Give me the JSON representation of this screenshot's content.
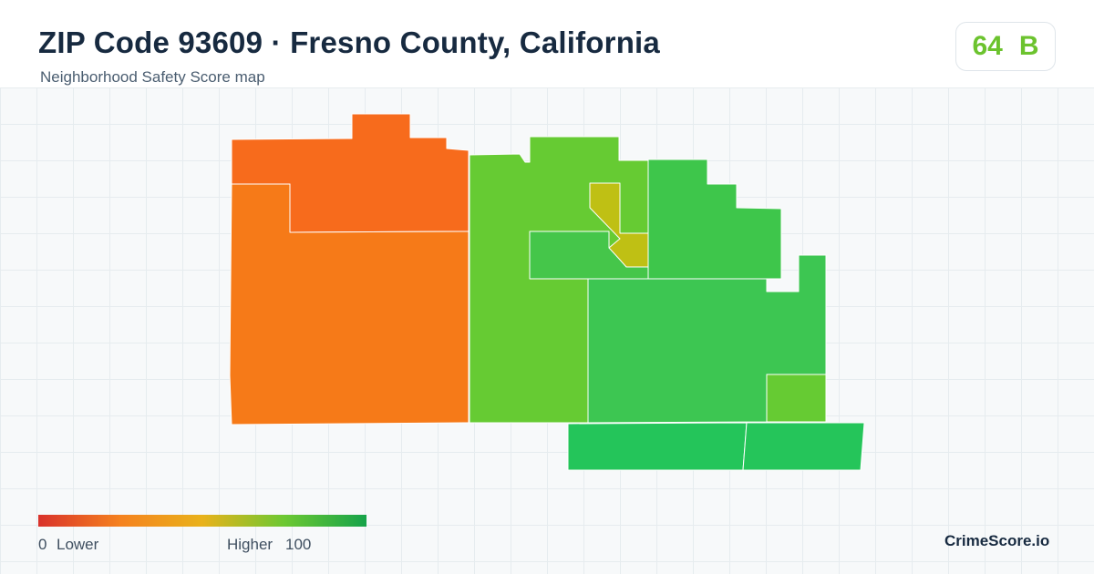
{
  "header": {
    "title": "ZIP Code 93609 · Fresno County, California",
    "subtitle": "Neighborhood Safety Score map"
  },
  "score": {
    "value": "64",
    "grade": "B",
    "color": "#6cc32e"
  },
  "legend": {
    "min_label": "0",
    "low_label": "Lower",
    "high_label": "Higher",
    "max_label": "100",
    "colors": [
      "#d9322b",
      "#f5821f",
      "#e9b21b",
      "#6cc832",
      "#16a34a"
    ]
  },
  "brand": "CrimeScore.io",
  "map": {
    "region_colors": {
      "north_west": "#f76b1c",
      "south_west": "#f67a18",
      "central": "#66cb33",
      "center_small": "#bfc014",
      "center_east_strip": "#45c64a",
      "north_east": "#3ec64b",
      "east": "#3dc652",
      "south_east_small": "#66cb33",
      "south_strip_left": "#24c55a",
      "south_strip_right": "#25c55a"
    }
  }
}
